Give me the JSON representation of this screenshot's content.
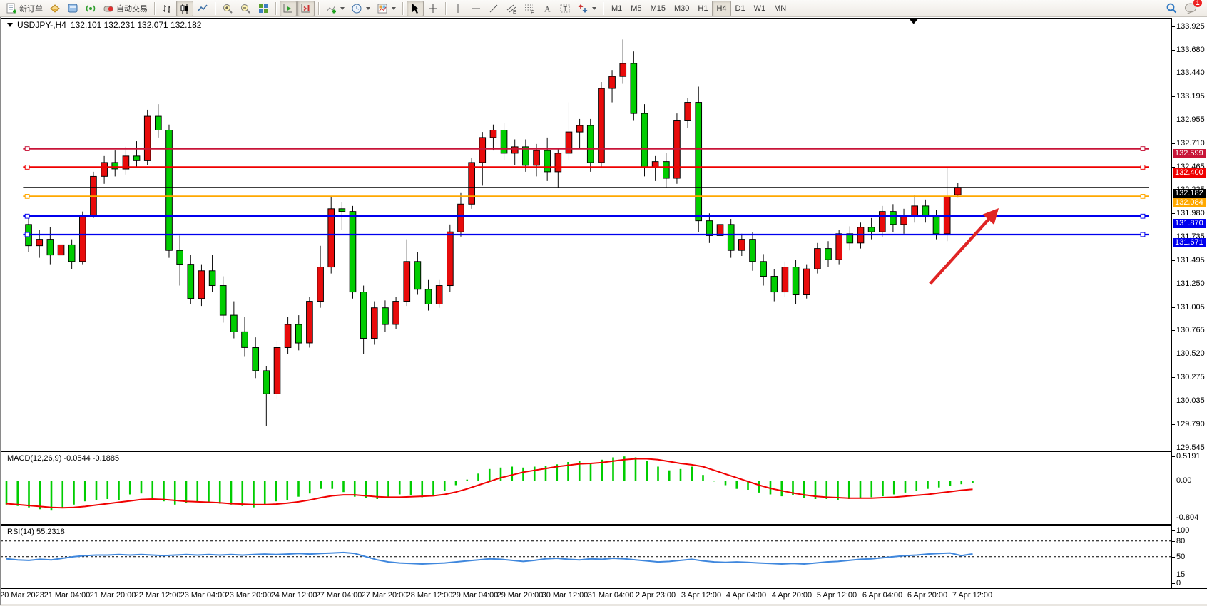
{
  "toolbar": {
    "new_order_label": "新订单",
    "autotrading_label": "自动交易",
    "timeframes": [
      "M1",
      "M5",
      "M15",
      "M30",
      "H1",
      "H4",
      "D1",
      "W1",
      "MN"
    ],
    "active_timeframe": "H4",
    "notification_badge": "1"
  },
  "chart": {
    "title_symbol": "USDJPY-,H4",
    "title_ohlc": "132.101 132.231 132.071 132.182"
  },
  "chart_data": [
    {
      "type": "candlestick",
      "title": "USDJPY- H4",
      "bull_color": "#e80b0b",
      "bear_color": "#00cd00",
      "wick_color": "#000000",
      "y_axis_ticks": [
        {
          "label": "133.925",
          "value": 133.925
        },
        {
          "label": "133.680",
          "value": 133.68
        },
        {
          "label": "133.440",
          "value": 133.44
        },
        {
          "label": "133.195",
          "value": 133.195
        },
        {
          "label": "132.955",
          "value": 132.955
        },
        {
          "label": "132.710",
          "value": 132.71
        },
        {
          "label": "132.465",
          "value": 132.465
        },
        {
          "label": "132.225",
          "value": 132.225
        },
        {
          "label": "131.980",
          "value": 131.98
        },
        {
          "label": "131.735",
          "value": 131.735
        },
        {
          "label": "131.495",
          "value": 131.495
        },
        {
          "label": "131.250",
          "value": 131.25
        },
        {
          "label": "131.005",
          "value": 131.005
        },
        {
          "label": "130.765",
          "value": 130.765
        },
        {
          "label": "130.520",
          "value": 130.52
        },
        {
          "label": "130.275",
          "value": 130.275
        },
        {
          "label": "130.035",
          "value": 130.035
        },
        {
          "label": "129.790",
          "value": 129.79
        },
        {
          "label": "129.545",
          "value": 129.545
        }
      ],
      "x_labels": [
        "20 Mar 2023",
        "21 Mar 04:00",
        "21 Mar 20:00",
        "22 Mar 12:00",
        "23 Mar 04:00",
        "23 Mar 20:00",
        "24 Mar 12:00",
        "27 Mar 04:00",
        "27 Mar 20:00",
        "28 Mar 12:00",
        "29 Mar 04:00",
        "29 Mar 20:00",
        "30 Mar 12:00",
        "31 Mar 04:00",
        "2 Apr 23:00",
        "3 Apr 12:00",
        "4 Apr 04:00",
        "4 Apr 20:00",
        "5 Apr 12:00",
        "6 Apr 04:00",
        "6 Apr 20:00",
        "7 Apr 12:00"
      ],
      "current_bar": {
        "open": 132.101,
        "high": 132.231,
        "low": 132.071,
        "close": 132.182
      },
      "candles": [
        [
          131.78,
          131.85,
          131.48,
          131.55
        ],
        [
          131.55,
          131.72,
          131.42,
          131.62
        ],
        [
          131.62,
          131.75,
          131.35,
          131.45
        ],
        [
          131.45,
          131.6,
          131.28,
          131.56
        ],
        [
          131.56,
          131.62,
          131.3,
          131.38
        ],
        [
          131.38,
          131.92,
          131.35,
          131.88
        ],
        [
          131.88,
          132.35,
          131.85,
          132.3
        ],
        [
          132.3,
          132.52,
          132.22,
          132.45
        ],
        [
          132.45,
          132.58,
          132.3,
          132.38
        ],
        [
          132.38,
          132.62,
          132.32,
          132.52
        ],
        [
          132.52,
          132.68,
          132.4,
          132.47
        ],
        [
          132.47,
          133.02,
          132.42,
          132.95
        ],
        [
          132.95,
          133.08,
          132.72,
          132.8
        ],
        [
          132.8,
          132.86,
          131.42,
          131.5
        ],
        [
          131.5,
          131.66,
          131.12,
          131.35
        ],
        [
          131.35,
          131.45,
          130.92,
          130.98
        ],
        [
          130.98,
          131.35,
          130.9,
          131.28
        ],
        [
          131.28,
          131.45,
          131.05,
          131.12
        ],
        [
          131.12,
          131.22,
          130.72,
          130.8
        ],
        [
          130.8,
          130.95,
          130.55,
          130.62
        ],
        [
          130.62,
          130.78,
          130.35,
          130.45
        ],
        [
          130.45,
          130.56,
          130.12,
          130.2
        ],
        [
          130.2,
          130.25,
          129.6,
          129.95
        ],
        [
          129.95,
          130.52,
          129.9,
          130.45
        ],
        [
          130.45,
          130.78,
          130.38,
          130.7
        ],
        [
          130.7,
          130.8,
          130.42,
          130.5
        ],
        [
          130.5,
          131.0,
          130.45,
          130.95
        ],
        [
          130.95,
          131.55,
          130.88,
          131.32
        ],
        [
          131.32,
          132.08,
          131.25,
          131.95
        ],
        [
          131.95,
          132.02,
          131.72,
          131.92
        ],
        [
          131.92,
          131.98,
          130.98,
          131.05
        ],
        [
          131.05,
          131.12,
          130.38,
          130.55
        ],
        [
          130.55,
          130.95,
          130.48,
          130.88
        ],
        [
          130.88,
          130.96,
          130.62,
          130.7
        ],
        [
          130.7,
          131.0,
          130.65,
          130.95
        ],
        [
          130.95,
          131.62,
          130.9,
          131.38
        ],
        [
          131.38,
          131.48,
          131.02,
          131.08
        ],
        [
          131.08,
          131.18,
          130.85,
          130.92
        ],
        [
          130.92,
          131.18,
          130.88,
          131.12
        ],
        [
          131.12,
          131.78,
          131.05,
          131.7
        ],
        [
          131.7,
          132.12,
          131.65,
          132.0
        ],
        [
          132.0,
          132.5,
          131.95,
          132.45
        ],
        [
          132.45,
          132.78,
          132.2,
          132.72
        ],
        [
          132.72,
          132.86,
          132.58,
          132.8
        ],
        [
          132.8,
          132.88,
          132.48,
          132.55
        ],
        [
          132.55,
          132.7,
          132.42,
          132.62
        ],
        [
          132.62,
          132.7,
          132.35,
          132.42
        ],
        [
          132.42,
          132.65,
          132.3,
          132.58
        ],
        [
          132.58,
          132.72,
          132.25,
          132.35
        ],
        [
          132.35,
          132.6,
          132.18,
          132.55
        ],
        [
          132.55,
          133.1,
          132.48,
          132.78
        ],
        [
          132.78,
          132.92,
          132.6,
          132.85
        ],
        [
          132.85,
          132.92,
          132.35,
          132.45
        ],
        [
          132.45,
          133.32,
          132.4,
          133.25
        ],
        [
          133.25,
          133.45,
          133.1,
          133.38
        ],
        [
          133.38,
          133.78,
          133.3,
          133.52
        ],
        [
          133.52,
          133.65,
          132.9,
          132.98
        ],
        [
          132.98,
          133.08,
          132.3,
          132.4
        ],
        [
          132.4,
          132.52,
          132.25,
          132.46
        ],
        [
          132.46,
          132.55,
          132.18,
          132.28
        ],
        [
          132.28,
          132.98,
          132.22,
          132.9
        ],
        [
          132.9,
          133.15,
          132.82,
          133.1
        ],
        [
          133.1,
          133.27,
          131.7,
          131.82
        ],
        [
          131.82,
          131.9,
          131.58,
          131.66
        ],
        [
          131.66,
          131.82,
          131.6,
          131.78
        ],
        [
          131.78,
          131.84,
          131.42,
          131.5
        ],
        [
          131.5,
          131.68,
          131.44,
          131.62
        ],
        [
          131.62,
          131.7,
          131.28,
          131.38
        ],
        [
          131.38,
          131.46,
          131.12,
          131.22
        ],
        [
          131.22,
          131.3,
          130.95,
          131.05
        ],
        [
          131.05,
          131.38,
          131.0,
          131.32
        ],
        [
          131.32,
          131.4,
          130.92,
          131.02
        ],
        [
          131.02,
          131.35,
          130.98,
          131.3
        ],
        [
          131.3,
          131.58,
          131.25,
          131.52
        ],
        [
          131.52,
          131.6,
          131.32,
          131.4
        ],
        [
          131.4,
          131.72,
          131.35,
          131.68
        ],
        [
          131.68,
          131.76,
          131.5,
          131.58
        ],
        [
          131.58,
          131.8,
          131.52,
          131.75
        ],
        [
          131.75,
          131.85,
          131.62,
          131.7
        ],
        [
          131.7,
          131.98,
          131.64,
          131.92
        ],
        [
          131.92,
          132.0,
          131.7,
          131.78
        ],
        [
          131.78,
          131.95,
          131.68,
          131.88
        ],
        [
          131.88,
          132.1,
          131.8,
          131.98
        ],
        [
          131.98,
          132.05,
          131.8,
          131.88
        ],
        [
          131.88,
          131.94,
          131.62,
          131.68
        ],
        [
          131.68,
          132.4,
          131.6,
          132.08
        ],
        [
          132.101,
          132.231,
          132.071,
          132.182
        ]
      ],
      "hlines": [
        {
          "price": 132.599,
          "label": "132.599",
          "color": "#c81538",
          "kind": "level"
        },
        {
          "price": 132.4,
          "label": "132.400",
          "color": "#ef0000",
          "kind": "level"
        },
        {
          "price": 132.182,
          "label": "132.182",
          "color": "#000000",
          "kind": "bid"
        },
        {
          "price": 132.084,
          "label": "132.084",
          "color": "#ffa800",
          "kind": "level"
        },
        {
          "price": 131.87,
          "label": "131.870",
          "color": "#0000ee",
          "kind": "level"
        },
        {
          "price": 131.671,
          "label": "131.671",
          "color": "#0000ee",
          "kind": "level"
        }
      ],
      "annotation_arrow": {
        "from_bar": 83.4,
        "from_price": 131.14,
        "to_bar": 89.6,
        "to_price": 131.93,
        "color": "#e02424"
      }
    },
    {
      "type": "bar",
      "title": "MACD",
      "label": "MACD(12,26,9) -0.0544 -0.1885",
      "current_values": [
        "-0.0544",
        "-0.1885"
      ],
      "histogram_color": "#00cd00",
      "signal_color": "#f00000",
      "y_ticks": [
        {
          "label": "0.5191",
          "value": 0.5191
        },
        {
          "label": "0.00",
          "value": 0
        },
        {
          "label": "-0.804",
          "value": -0.804
        }
      ],
      "histogram": [
        -0.52,
        -0.55,
        -0.58,
        -0.62,
        -0.65,
        -0.6,
        -0.52,
        -0.45,
        -0.42,
        -0.4,
        -0.42,
        -0.3,
        -0.28,
        -0.38,
        -0.45,
        -0.52,
        -0.48,
        -0.45,
        -0.48,
        -0.5,
        -0.52,
        -0.55,
        -0.58,
        -0.52,
        -0.45,
        -0.42,
        -0.35,
        -0.28,
        -0.18,
        -0.18,
        -0.25,
        -0.35,
        -0.38,
        -0.4,
        -0.38,
        -0.3,
        -0.32,
        -0.36,
        -0.32,
        -0.22,
        -0.1,
        0.02,
        0.15,
        0.25,
        0.28,
        0.3,
        0.28,
        0.3,
        0.32,
        0.35,
        0.4,
        0.42,
        0.38,
        0.45,
        0.5,
        0.52,
        0.5,
        0.42,
        0.3,
        0.22,
        0.25,
        0.3,
        0.12,
        -0.02,
        -0.1,
        -0.18,
        -0.2,
        -0.26,
        -0.3,
        -0.34,
        -0.32,
        -0.38,
        -0.4,
        -0.4,
        -0.42,
        -0.4,
        -0.38,
        -0.36,
        -0.34,
        -0.3,
        -0.26,
        -0.22,
        -0.18,
        -0.15,
        -0.12,
        -0.08,
        -0.0544
      ],
      "signal": [
        -0.5,
        -0.52,
        -0.54,
        -0.56,
        -0.58,
        -0.59,
        -0.58,
        -0.56,
        -0.53,
        -0.5,
        -0.47,
        -0.44,
        -0.41,
        -0.4,
        -0.41,
        -0.43,
        -0.45,
        -0.46,
        -0.47,
        -0.48,
        -0.5,
        -0.51,
        -0.52,
        -0.52,
        -0.51,
        -0.49,
        -0.46,
        -0.42,
        -0.37,
        -0.33,
        -0.31,
        -0.31,
        -0.33,
        -0.35,
        -0.36,
        -0.36,
        -0.35,
        -0.34,
        -0.33,
        -0.3,
        -0.25,
        -0.18,
        -0.1,
        -0.02,
        0.06,
        0.12,
        0.18,
        0.22,
        0.26,
        0.3,
        0.33,
        0.36,
        0.37,
        0.39,
        0.42,
        0.45,
        0.47,
        0.47,
        0.45,
        0.41,
        0.37,
        0.34,
        0.3,
        0.22,
        0.14,
        0.06,
        -0.02,
        -0.1,
        -0.17,
        -0.22,
        -0.27,
        -0.31,
        -0.34,
        -0.36,
        -0.37,
        -0.38,
        -0.38,
        -0.38,
        -0.37,
        -0.36,
        -0.34,
        -0.32,
        -0.3,
        -0.27,
        -0.24,
        -0.21,
        -0.1885
      ]
    },
    {
      "type": "line",
      "title": "RSI",
      "label": "RSI(14) 55.2318",
      "current_value": "55.2318",
      "color": "#3f87dd",
      "levels": [
        80,
        50,
        15
      ],
      "y_ticks": [
        {
          "label": "100",
          "value": 100
        },
        {
          "label": "80",
          "value": 80
        },
        {
          "label": "50",
          "value": 50
        },
        {
          "label": "15",
          "value": 15
        },
        {
          "label": "0",
          "value": 0
        }
      ],
      "values": [
        46,
        44,
        43,
        45,
        44,
        47,
        50,
        52,
        53,
        53,
        54,
        53,
        54,
        53,
        52,
        53,
        54,
        53,
        54,
        53,
        54,
        53,
        54,
        55,
        54,
        55,
        56,
        55,
        56,
        57,
        58,
        56,
        50,
        44,
        40,
        38,
        37,
        36,
        37,
        38,
        40,
        42,
        44,
        46,
        45,
        43,
        41,
        43,
        46,
        47,
        45,
        44,
        46,
        45,
        47,
        46,
        44,
        42,
        40,
        41,
        43,
        45,
        42,
        40,
        39,
        40,
        39,
        38,
        37,
        36,
        37,
        36,
        38,
        40,
        41,
        43,
        45,
        46,
        48,
        50,
        52,
        53,
        55,
        56,
        57,
        52,
        55.2318
      ]
    }
  ]
}
